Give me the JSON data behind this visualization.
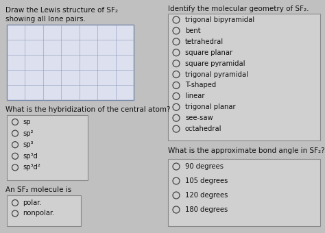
{
  "bg_color": "#c0c0c0",
  "title_left_line1": "Draw the Lewis structure of SF₂",
  "title_left_line2": "showing all lone pairs.",
  "title_right": "Identify the molecular geometry of SF₂.",
  "grid_cols": 7,
  "grid_rows": 5,
  "grid_color": "#8899bb",
  "grid_bg": "#dde0ee",
  "hybridization_label": "What is the hybridization of the central atom?",
  "hybridization_options": [
    "sp",
    "sp²",
    "sp³",
    "sp³d",
    "sp³d²"
  ],
  "geometry_options": [
    "trigonal bipyramidal",
    "bent",
    "tetrahedral",
    "square planar",
    "square pyramidal",
    "trigonal pyramidal",
    "T-shaped",
    "linear",
    "trigonal planar",
    "see-saw",
    "octahedral"
  ],
  "polar_label": "An SF₂ molecule is",
  "polar_options": [
    "polar.",
    "nonpolar."
  ],
  "bond_angle_label": "What is the approximate bond angle in SF₂?",
  "bond_angle_options": [
    "90 degrees",
    "105 degrees",
    "120 degrees",
    "180 degrees"
  ],
  "font_size_main": 7.5,
  "font_size_options": 7.2,
  "text_color": "#111111",
  "box_edge_color": "#888888",
  "box_bg": "#d0d0d0"
}
